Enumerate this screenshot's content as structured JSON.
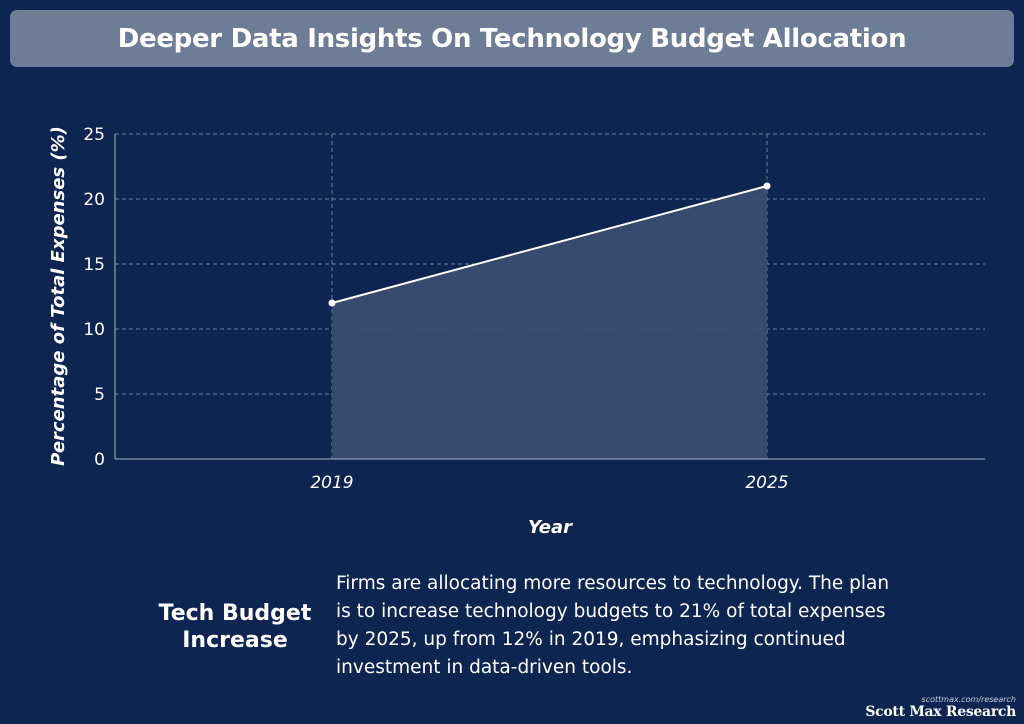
{
  "header": {
    "title": "Deeper Data Insights On Technology Budget Allocation"
  },
  "chart_data": {
    "type": "area",
    "title": "Deeper Data Insights On Technology Budget Allocation",
    "xlabel": "Year",
    "ylabel": "Percentage of Total Expenses (%)",
    "categories": [
      "2019",
      "2025"
    ],
    "series": [
      {
        "name": "Tech Budget",
        "values": [
          12,
          21
        ]
      }
    ],
    "ylim": [
      0,
      25
    ],
    "yticks": [
      0,
      5,
      10,
      15,
      20,
      25
    ],
    "grid": true,
    "colors": {
      "line": "#ffffff",
      "fill": "#3b5070",
      "grid": "#8a9bb3",
      "axis": "#aab6c8",
      "background": "#0d2550"
    }
  },
  "callout": {
    "title": "Tech Budget Increase",
    "text": "Firms are allocating more resources to technology. The plan is to increase technology budgets to 21% of total expenses by 2025, up from 12% in 2019, emphasizing continued investment in data-driven tools."
  },
  "branding": {
    "url": "scottmax.com/research",
    "name": "Scott Max Research"
  }
}
